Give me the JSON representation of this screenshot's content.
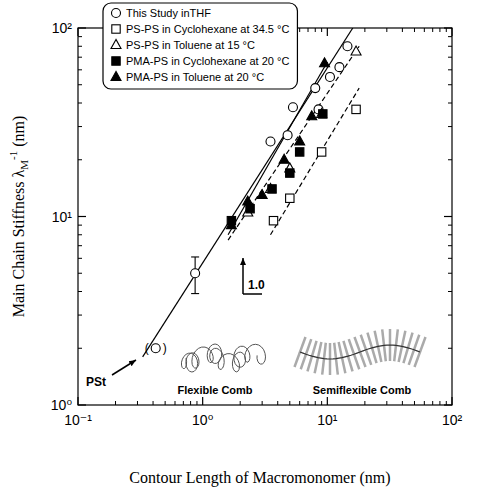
{
  "chart_data": {
    "type": "scatter",
    "x_label": "Contour Length of Macromonomer (nm)",
    "y_label": "Main Chain Stiffness λM-1 (nm)",
    "log": true,
    "grid": false,
    "legend": "upper left",
    "xlim": [
      0.1,
      100
    ],
    "ylim": [
      1,
      100
    ],
    "xticks": [
      {
        "value": 0.1,
        "label": "10⁻¹"
      },
      {
        "value": 1,
        "label": "10⁰"
      },
      {
        "value": 10,
        "label": "10¹"
      },
      {
        "value": 100,
        "label": "10²"
      }
    ],
    "yticks": [
      {
        "value": 1,
        "label": "10⁰"
      },
      {
        "value": 10,
        "label": "10¹"
      },
      {
        "value": 100,
        "label": "10²"
      }
    ],
    "series": [
      {
        "name": "This Study inTHF",
        "color": "#000000",
        "marker": "circle-open",
        "x": [
          0.42,
          0.87,
          3.5,
          4.8,
          5.3,
          8.0,
          8.5,
          10.5,
          12.5,
          14.5
        ],
        "values": [
          2.0,
          5.0,
          25,
          27,
          38,
          48,
          37,
          55,
          62,
          80
        ],
        "errors": [
          null,
          1.1,
          null,
          null,
          null,
          null,
          null,
          null,
          null,
          null
        ]
      },
      {
        "name": "PS-PS in Cyclohexane at 34.5 °C",
        "color": "#000000",
        "marker": "square-open",
        "x": [
          3.7,
          5.0,
          9.0,
          17
        ],
        "values": [
          9.5,
          12.5,
          22,
          37
        ]
      },
      {
        "name": "PS-PS in Toluene at 15 °C",
        "color": "#000000",
        "marker": "triangle-open",
        "x": [
          2.3,
          3.5,
          5.0,
          9.0,
          17
        ],
        "values": [
          10.5,
          14,
          18,
          35,
          75
        ]
      },
      {
        "name": "PMA-PS in Cyclohexane at 20 °C",
        "color": "#000000",
        "marker": "square",
        "x": [
          1.7,
          2.4,
          3.6,
          5.0,
          6.0,
          9.2
        ],
        "values": [
          9.5,
          11,
          14,
          17,
          22,
          35
        ]
      },
      {
        "name": "PMA-PS in Toluene at 20 °C",
        "color": "#000000",
        "marker": "triangle",
        "x": [
          1.7,
          2.3,
          3.0,
          4.5,
          6.0,
          7.5,
          9.5
        ],
        "values": [
          9,
          12,
          13,
          20,
          25,
          34,
          65
        ]
      },
      {
        "type": "line",
        "color": "#000000",
        "line_style": "solid",
        "x": [
          0.33,
          16
        ],
        "values": [
          1.8,
          100
        ]
      },
      {
        "type": "line",
        "color": "#000000",
        "line_style": "solid",
        "x": [
          1.6,
          10
        ],
        "values": [
          8,
          66
        ]
      },
      {
        "type": "line",
        "color": "#000000",
        "line_style": "dashed",
        "x": [
          1.6,
          18
        ],
        "values": [
          7.5,
          80
        ]
      },
      {
        "type": "line",
        "color": "#000000",
        "line_style": "dashed",
        "x": [
          3.5,
          18
        ],
        "values": [
          8,
          48
        ]
      }
    ],
    "annotations": [
      "PSt",
      "1.0",
      "Flexible Comb",
      "Semiflexible Comb",
      "(",
      ")"
    ]
  }
}
